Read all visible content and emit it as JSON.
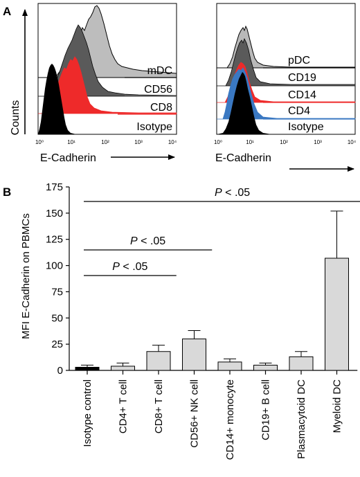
{
  "panel_a": {
    "label": "A",
    "left_histogram": {
      "ylabel": "Counts",
      "xlabel": "E-Cadherin",
      "xticks": [
        "10⁰",
        "10¹",
        "10²",
        "10³",
        "10⁴"
      ],
      "legend": [
        "mDC",
        "CD56",
        "CD8",
        "Isotype"
      ],
      "colors": {
        "mDC": "#bdbdbd",
        "CD56": "#5a5a5a",
        "CD8": "#ee2a2a",
        "Isotype": "#000000"
      }
    },
    "right_histogram": {
      "xlabel": "E-Cadherin",
      "xticks": [
        "10⁰",
        "10¹",
        "10²",
        "10³",
        "10⁴"
      ],
      "legend": [
        "pDC",
        "CD19",
        "CD14",
        "CD4",
        "Isotype"
      ],
      "colors": {
        "pDC": "#b9b9b9",
        "CD19": "#5a5a5a",
        "CD14": "#ee2a2a",
        "CD4": "#3a78c2",
        "Isotype": "#000000"
      }
    }
  },
  "panel_b": {
    "label": "B",
    "significance": [
      "P < .05",
      "P < .05",
      "P < .05"
    ]
  },
  "chart_data": {
    "type": "bar",
    "categories": [
      "Isotype control",
      "CD4+ T cell",
      "CD8+ T cell",
      "CD56+ NK cell",
      "CD14+ monocyte",
      "CD19+ B cell",
      "Plasmacytoid DC",
      "Myeloid DC"
    ],
    "values": [
      3,
      4,
      18,
      30,
      8,
      5,
      13,
      107
    ],
    "errors": [
      2,
      3,
      6,
      8,
      3,
      2,
      5,
      45
    ],
    "bar_colors": [
      "#000000",
      "#d9d9d9",
      "#d9d9d9",
      "#d9d9d9",
      "#d9d9d9",
      "#d9d9d9",
      "#d9d9d9",
      "#d9d9d9"
    ],
    "ylabel": "MFI E-Cadherin on PBMCs",
    "ylim": [
      0,
      175
    ],
    "yticks": [
      0,
      25,
      50,
      75,
      100,
      125,
      150,
      175
    ],
    "comparisons": [
      {
        "from": "Isotype control",
        "to": "CD8+ T cell",
        "label": "P < .05"
      },
      {
        "from": "Isotype control",
        "to": "CD56+ NK cell",
        "label": "P < .05"
      },
      {
        "from": "Isotype control",
        "to": "Myeloid DC",
        "label": "P < .05"
      }
    ]
  }
}
